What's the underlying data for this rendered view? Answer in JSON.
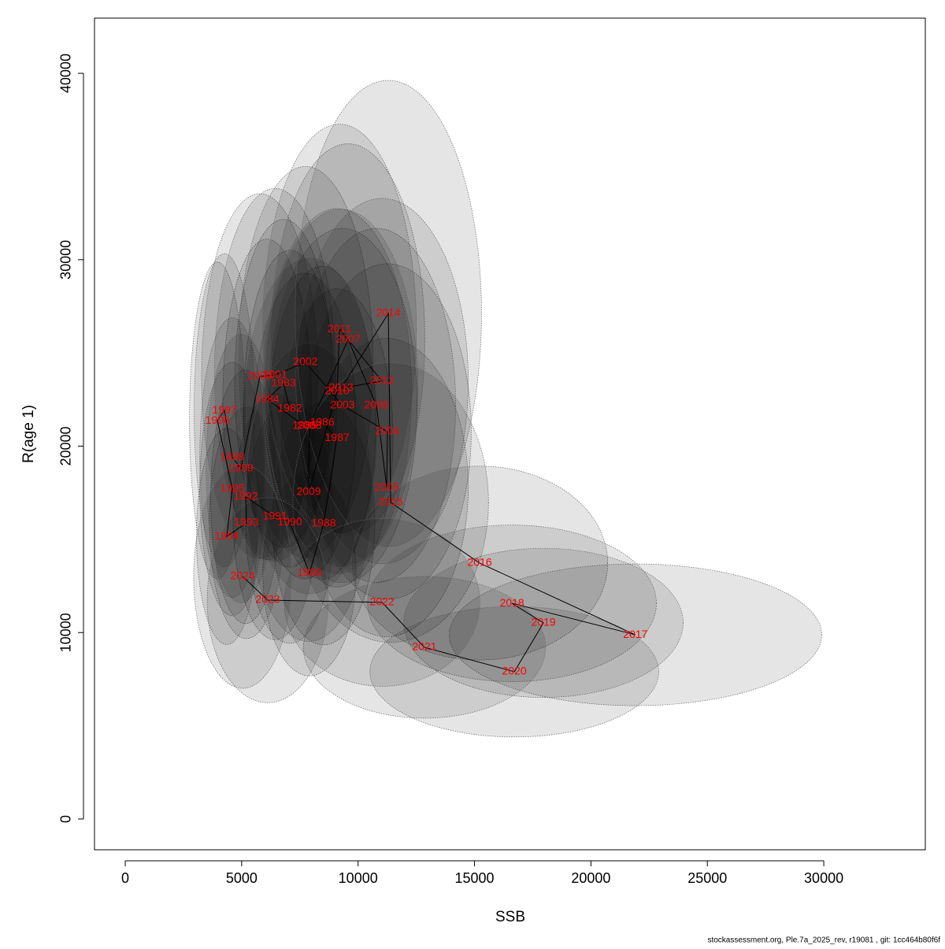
{
  "chart_data": {
    "type": "scatter",
    "x_label": "SSB",
    "y_label": "R(age 1)",
    "footer": "stockassessment.org, Ple.7a_2025_rev, r19081 , git: 1cc464b80f6f",
    "point_labels": [
      "1982",
      "1983",
      "1984",
      "1985",
      "1986",
      "1987",
      "1988",
      "1989",
      "1990",
      "1991",
      "1992",
      "1993",
      "1994",
      "1995",
      "1996",
      "1997",
      "1998",
      "1999",
      "2000",
      "2001",
      "2002",
      "2003",
      "2004",
      "2005",
      "2006",
      "2007",
      "2008",
      "2009",
      "2010",
      "2011",
      "2012",
      "2013",
      "2014",
      "2015",
      "2016",
      "2017",
      "2018",
      "2019",
      "2020",
      "2021",
      "2022",
      "2023",
      "2024"
    ],
    "x": [
      7070,
      6800,
      6090,
      7710,
      8460,
      9100,
      8520,
      7910,
      7070,
      6430,
      5170,
      5210,
      4360,
      4600,
      3960,
      4260,
      4600,
      4970,
      5780,
      6430,
      7740,
      9330,
      11260,
      11230,
      10790,
      9570,
      7910,
      7880,
      9100,
      9200,
      11030,
      9270,
      11300,
      11400,
      15220,
      21910,
      16610,
      17960,
      16710,
      12850,
      11030,
      6120,
      5040
    ],
    "values": [
      22010,
      23360,
      22510,
      21080,
      21250,
      20440,
      15840,
      13180,
      15920,
      16220,
      17280,
      15880,
      15160,
      17700,
      21370,
      21920,
      19390,
      18800,
      23740,
      23820,
      24500,
      22180,
      20780,
      17780,
      22180,
      25720,
      21080,
      17530,
      22940,
      26270,
      23490,
      23110,
      27120,
      16980,
      13730,
      9880,
      11570,
      10520,
      7900,
      9210,
      11620,
      11740,
      13010
    ],
    "ssb_halfwidth": [
      2000,
      2100,
      1900,
      2200,
      2300,
      2400,
      2200,
      2000,
      1900,
      1800,
      1500,
      1600,
      1300,
      1400,
      1200,
      1300,
      1400,
      1500,
      2500,
      2600,
      2900,
      3200,
      3600,
      3500,
      3400,
      3300,
      2900,
      2700,
      3200,
      3300,
      3700,
      3300,
      4000,
      4200,
      5500,
      8000,
      6200,
      6000,
      6200,
      5200,
      4200,
      2600,
      2100
    ],
    "r_halfwidth": [
      8500,
      8800,
      8600,
      8200,
      8400,
      8000,
      6500,
      5500,
      6500,
      6600,
      6800,
      6200,
      5800,
      6800,
      8500,
      8400,
      7500,
      7200,
      9800,
      10000,
      10500,
      9500,
      9000,
      8000,
      9500,
      10500,
      9000,
      8000,
      9800,
      11000,
      9800,
      9600,
      12500,
      7500,
      5200,
      3800,
      4200,
      4000,
      3500,
      3800,
      4500,
      5500,
      6000
    ],
    "color": "#ff0000",
    "xlim": [
      -1320,
      34360
    ],
    "ylim": [
      -1650,
      42960
    ],
    "xticks": [
      0,
      5000,
      10000,
      15000,
      20000,
      25000,
      30000
    ],
    "yticks": [
      0,
      10000,
      20000,
      30000,
      40000
    ]
  }
}
